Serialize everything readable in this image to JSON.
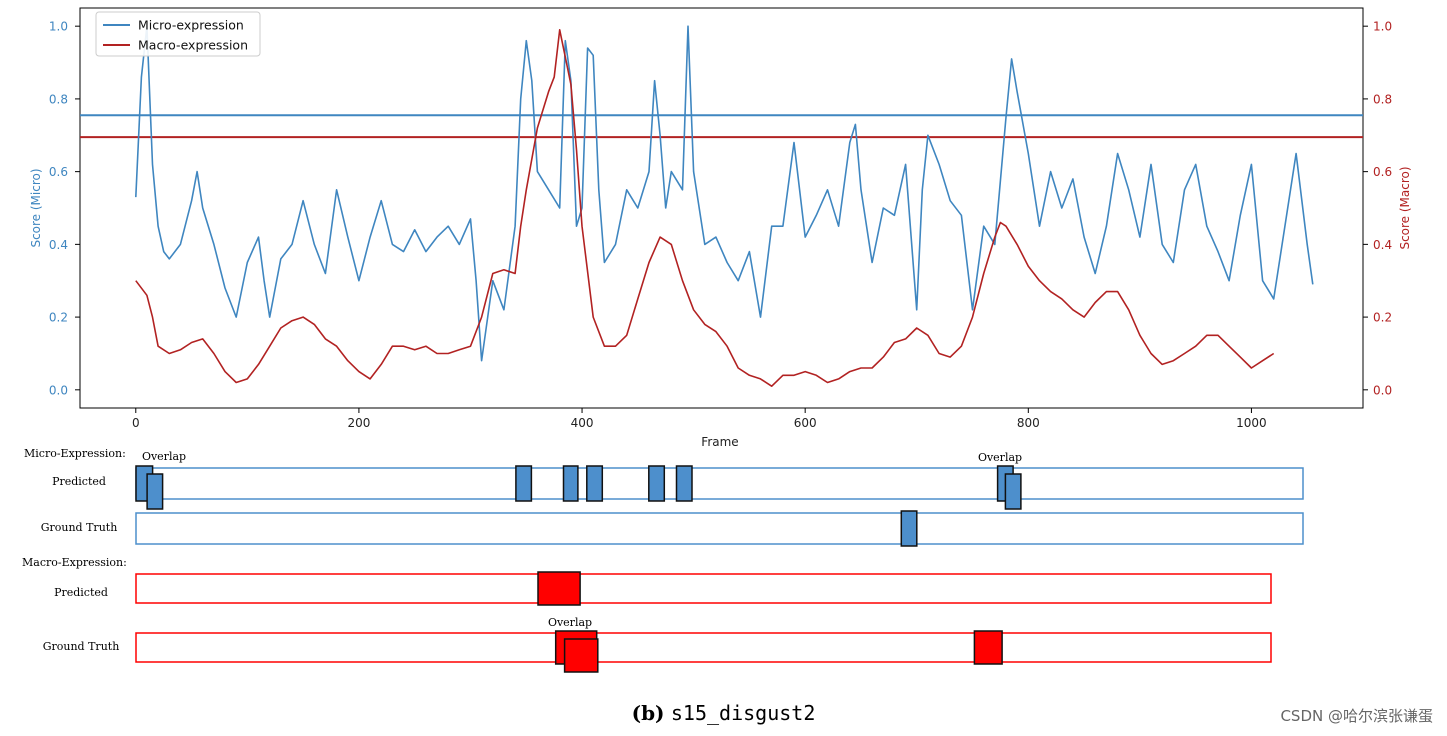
{
  "chart_data": {
    "type": "line",
    "x_axis": {
      "label": "Frame",
      "lim": [
        -50,
        1100
      ],
      "ticks": [
        0,
        200,
        400,
        600,
        800,
        1000
      ]
    },
    "left_axis": {
      "label": "Score (Micro)",
      "lim": [
        -0.05,
        1.05
      ],
      "ticks": [
        0.0,
        0.2,
        0.4,
        0.6,
        0.8,
        1.0
      ],
      "tick_labels": [
        "0.0",
        "0.2",
        "0.4",
        "0.6",
        "0.8",
        "1.0"
      ],
      "color": "#3f86c0"
    },
    "right_axis": {
      "label": "Score (Macro)",
      "lim": [
        -0.05,
        1.05
      ],
      "ticks": [
        0.0,
        0.2,
        0.4,
        0.6,
        0.8,
        1.0
      ],
      "tick_labels": [
        "0.0",
        "0.2",
        "0.4",
        "0.6",
        "0.8",
        "1.0"
      ],
      "color": "#b22222"
    },
    "legend": {
      "placement": "top-left",
      "entries": [
        "Micro-expression",
        "Macro-expression"
      ]
    },
    "series": [
      {
        "name": "Micro-expression",
        "color": "#3f86c0",
        "threshold": 0.755,
        "x": [
          0,
          5,
          10,
          15,
          20,
          25,
          30,
          40,
          50,
          55,
          60,
          70,
          80,
          90,
          100,
          110,
          115,
          120,
          130,
          140,
          150,
          160,
          170,
          180,
          190,
          200,
          210,
          220,
          230,
          240,
          250,
          260,
          270,
          280,
          290,
          300,
          305,
          310,
          320,
          330,
          340,
          345,
          350,
          355,
          360,
          370,
          380,
          385,
          390,
          395,
          400,
          405,
          410,
          415,
          420,
          430,
          440,
          450,
          460,
          465,
          470,
          475,
          480,
          490,
          495,
          500,
          510,
          520,
          530,
          540,
          550,
          560,
          570,
          580,
          590,
          600,
          610,
          620,
          630,
          640,
          645,
          650,
          660,
          670,
          680,
          690,
          700,
          705,
          710,
          720,
          730,
          740,
          750,
          760,
          770,
          780,
          785,
          790,
          800,
          810,
          820,
          830,
          840,
          850,
          860,
          870,
          880,
          890,
          900,
          910,
          920,
          930,
          940,
          950,
          960,
          970,
          980,
          990,
          1000,
          1010,
          1020,
          1030,
          1040,
          1050,
          1055
        ],
        "values": [
          0.53,
          0.86,
          1.0,
          0.62,
          0.45,
          0.38,
          0.36,
          0.4,
          0.52,
          0.6,
          0.5,
          0.4,
          0.28,
          0.2,
          0.35,
          0.42,
          0.3,
          0.2,
          0.36,
          0.4,
          0.52,
          0.4,
          0.32,
          0.55,
          0.42,
          0.3,
          0.42,
          0.52,
          0.4,
          0.38,
          0.44,
          0.38,
          0.42,
          0.45,
          0.4,
          0.47,
          0.3,
          0.08,
          0.3,
          0.22,
          0.45,
          0.8,
          0.96,
          0.85,
          0.6,
          0.55,
          0.5,
          0.96,
          0.85,
          0.45,
          0.5,
          0.94,
          0.92,
          0.55,
          0.35,
          0.4,
          0.55,
          0.5,
          0.6,
          0.85,
          0.7,
          0.5,
          0.6,
          0.55,
          1.0,
          0.6,
          0.4,
          0.42,
          0.35,
          0.3,
          0.38,
          0.2,
          0.45,
          0.45,
          0.68,
          0.42,
          0.48,
          0.55,
          0.45,
          0.68,
          0.73,
          0.55,
          0.35,
          0.5,
          0.48,
          0.62,
          0.22,
          0.55,
          0.7,
          0.62,
          0.52,
          0.48,
          0.22,
          0.45,
          0.4,
          0.75,
          0.91,
          0.82,
          0.65,
          0.45,
          0.6,
          0.5,
          0.58,
          0.42,
          0.32,
          0.45,
          0.65,
          0.55,
          0.42,
          0.62,
          0.4,
          0.35,
          0.55,
          0.62,
          0.45,
          0.38,
          0.3,
          0.48,
          0.62,
          0.3,
          0.25,
          0.45,
          0.65,
          0.4,
          0.29
        ]
      },
      {
        "name": "Macro-expression",
        "color": "#b22222",
        "threshold": 0.695,
        "x": [
          0,
          10,
          15,
          20,
          30,
          40,
          50,
          60,
          70,
          80,
          90,
          100,
          110,
          120,
          130,
          140,
          150,
          160,
          170,
          180,
          190,
          200,
          210,
          220,
          230,
          240,
          250,
          260,
          270,
          280,
          290,
          300,
          310,
          320,
          330,
          340,
          345,
          350,
          360,
          370,
          375,
          380,
          390,
          395,
          400,
          410,
          420,
          430,
          440,
          450,
          460,
          470,
          480,
          490,
          500,
          510,
          520,
          530,
          540,
          550,
          560,
          570,
          580,
          590,
          600,
          610,
          620,
          630,
          640,
          650,
          660,
          670,
          680,
          690,
          700,
          710,
          720,
          730,
          740,
          750,
          760,
          770,
          775,
          780,
          790,
          800,
          810,
          820,
          830,
          840,
          850,
          860,
          870,
          880,
          890,
          900,
          910,
          920,
          930,
          940,
          950,
          960,
          970,
          980,
          990,
          1000,
          1010,
          1020
        ],
        "values": [
          0.3,
          0.26,
          0.2,
          0.12,
          0.1,
          0.11,
          0.13,
          0.14,
          0.1,
          0.05,
          0.02,
          0.03,
          0.07,
          0.12,
          0.17,
          0.19,
          0.2,
          0.18,
          0.14,
          0.12,
          0.08,
          0.05,
          0.03,
          0.07,
          0.12,
          0.12,
          0.11,
          0.12,
          0.1,
          0.1,
          0.11,
          0.12,
          0.2,
          0.32,
          0.33,
          0.32,
          0.45,
          0.55,
          0.72,
          0.82,
          0.86,
          0.99,
          0.84,
          0.66,
          0.45,
          0.2,
          0.12,
          0.12,
          0.15,
          0.25,
          0.35,
          0.42,
          0.4,
          0.3,
          0.22,
          0.18,
          0.16,
          0.12,
          0.06,
          0.04,
          0.03,
          0.01,
          0.04,
          0.04,
          0.05,
          0.04,
          0.02,
          0.03,
          0.05,
          0.06,
          0.06,
          0.09,
          0.13,
          0.14,
          0.17,
          0.15,
          0.1,
          0.09,
          0.12,
          0.2,
          0.32,
          0.42,
          0.46,
          0.45,
          0.4,
          0.34,
          0.3,
          0.27,
          0.25,
          0.22,
          0.2,
          0.24,
          0.27,
          0.27,
          0.22,
          0.15,
          0.1,
          0.07,
          0.08,
          0.1,
          0.12,
          0.15,
          0.15,
          0.12,
          0.09,
          0.06,
          0.08,
          0.1
        ]
      }
    ],
    "timeline": {
      "sections": [
        {
          "title": "Micro-Expression:",
          "color": "#4d8fcc",
          "rows": [
            {
              "label": "Predicted",
              "intervals": [
                [
                  0,
                  15
                ],
                [
                  10,
                  24
                ],
                [
                  343,
                  357
                ],
                [
                  386,
                  399
                ],
                [
                  407,
                  421
                ],
                [
                  463,
                  477
                ],
                [
                  488,
                  502
                ],
                [
                  778,
                  792
                ],
                [
                  785,
                  799
                ]
              ],
              "annotations": [
                {
                  "text": "Overlap",
                  "at": 25
                },
                {
                  "text": "Overlap",
                  "at": 788
                }
              ]
            },
            {
              "label": "Ground Truth",
              "intervals": [
                [
                  691,
                  705
                ]
              ],
              "annotations": []
            }
          ]
        },
        {
          "title": "Macro-Expression:",
          "color": "#ff0000",
          "rows": [
            {
              "label": "Predicted",
              "intervals": [
                [
                  363,
                  401
                ]
              ],
              "annotations": []
            },
            {
              "label": "Ground Truth",
              "intervals": [
                [
                  379,
                  416
                ],
                [
                  387,
                  417
                ],
                [
                  757,
                  782
                ]
              ],
              "annotations": [
                {
                  "text": "Overlap",
                  "at": 392
                }
              ]
            }
          ]
        }
      ]
    }
  },
  "caption": {
    "label": "(b)",
    "name": "s15_disgust2"
  },
  "watermark": "CSDN @哈尔滨张谦蛋"
}
